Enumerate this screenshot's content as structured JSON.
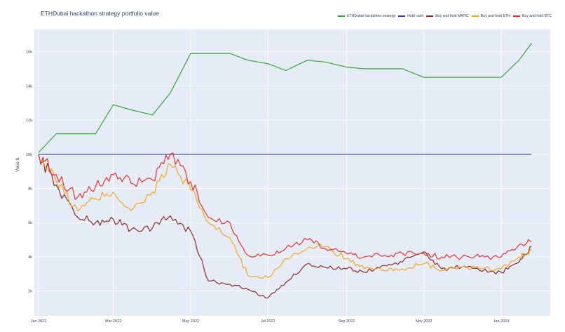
{
  "chart_data": {
    "type": "line",
    "title": "ETHDubai hackathon strategy portfolio value",
    "xlabel": "",
    "ylabel": "Value $",
    "ylim": [
      550,
      17300
    ],
    "y_ticks": [
      "2k",
      "4k",
      "6k",
      "8k",
      "10k",
      "12k",
      "14k",
      "16k"
    ],
    "y_tick_values": [
      2000,
      4000,
      6000,
      8000,
      10000,
      12000,
      14000,
      16000
    ],
    "x_ticks": [
      "Jan 2022",
      "Mar 2022",
      "May 2022",
      "Jul 2022",
      "Sep 2022",
      "Nov 2022",
      "Jan 2023"
    ],
    "grid": true,
    "legend_position": "top-right, horizontal",
    "x": [
      "2022-01-01",
      "2022-01-15",
      "2022-02-01",
      "2022-02-15",
      "2022-03-01",
      "2022-03-15",
      "2022-04-01",
      "2022-04-15",
      "2022-05-01",
      "2022-05-15",
      "2022-06-01",
      "2022-06-15",
      "2022-07-01",
      "2022-07-15",
      "2022-08-01",
      "2022-08-15",
      "2022-09-01",
      "2022-09-15",
      "2022-10-01",
      "2022-10-15",
      "2022-11-01",
      "2022-11-15",
      "2022-12-01",
      "2022-12-15",
      "2023-01-01",
      "2023-01-15",
      "2023-01-25"
    ],
    "series": [
      {
        "name": "ETHDubai hackathon strategy",
        "color": "#3aa33a",
        "values": [
          10100,
          11200,
          11200,
          11200,
          12900,
          12600,
          12300,
          13600,
          15900,
          15900,
          15900,
          15500,
          15300,
          14900,
          15500,
          15400,
          15100,
          15000,
          15000,
          15000,
          14500,
          14500,
          14500,
          14500,
          14500,
          15500,
          16500
        ]
      },
      {
        "name": "Hold cash",
        "color": "#3a3aa8",
        "values": [
          10000,
          10000,
          10000,
          10000,
          10000,
          10000,
          10000,
          10000,
          10000,
          10000,
          10000,
          10000,
          10000,
          10000,
          10000,
          10000,
          10000,
          10000,
          10000,
          10000,
          10000,
          10000,
          10000,
          10000,
          10000,
          10000,
          10000
        ]
      },
      {
        "name": "Buy and hold MATIC",
        "color": "#8b2a2a",
        "values": [
          10000,
          8200,
          6300,
          6000,
          6200,
          5600,
          5700,
          6400,
          5500,
          2600,
          2400,
          2100,
          1600,
          2500,
          3600,
          3400,
          3300,
          3100,
          3500,
          3700,
          4300,
          3300,
          3400,
          3200,
          3100,
          3700,
          4600
        ]
      },
      {
        "name": "Buy and hold ETH",
        "color": "#f5a623",
        "values": [
          10000,
          8400,
          6700,
          7400,
          7800,
          6700,
          7800,
          9400,
          7900,
          6000,
          5100,
          2900,
          2800,
          3900,
          4500,
          4600,
          3900,
          3300,
          3200,
          3300,
          3600,
          3200,
          3400,
          3300,
          3300,
          4000,
          4400
        ]
      },
      {
        "name": "Buy and hold BTC",
        "color": "#e8312f",
        "values": [
          10000,
          8800,
          7500,
          8100,
          8800,
          8300,
          8500,
          10000,
          8400,
          6300,
          6000,
          4100,
          4100,
          4500,
          5000,
          4500,
          4200,
          4000,
          4100,
          4200,
          4200,
          4000,
          4000,
          4000,
          4000,
          4700,
          4900
        ]
      }
    ]
  },
  "legend": {
    "items": [
      {
        "label": "ETHDubai hackathon strategy",
        "color": "#3aa33a"
      },
      {
        "label": "Hold cash",
        "color": "#3a3aa8"
      },
      {
        "label": "Buy and hold MATIC",
        "color": "#8b2a2a"
      },
      {
        "label": "Buy and hold ETH",
        "color": "#f5a623"
      },
      {
        "label": "Buy and hold BTC",
        "color": "#e8312f"
      }
    ]
  },
  "colors": {
    "plot_bg": "#e5ecf6",
    "grid": "#ffffff",
    "text": "#2a3f5f"
  }
}
